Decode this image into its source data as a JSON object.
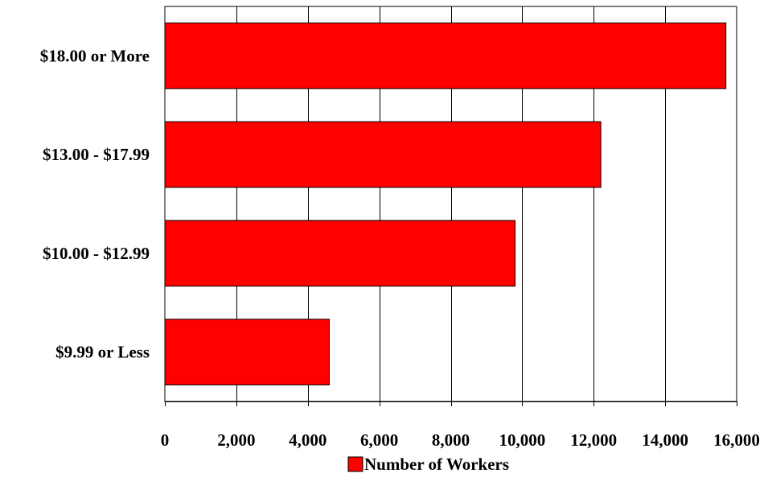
{
  "chart_data": {
    "type": "bar",
    "orientation": "horizontal",
    "title": "",
    "xlabel": "",
    "ylabel": "",
    "categories": [
      "$9.99 or Less",
      "$10.00 - $12.99",
      "$13.00 - $17.99",
      "$18.00 or More"
    ],
    "series": [
      {
        "name": "Number of Workers",
        "values": [
          4600,
          9800,
          12200,
          15700
        ]
      }
    ],
    "xlim": [
      0,
      16000
    ],
    "xticks": [
      0,
      2000,
      4000,
      6000,
      8000,
      10000,
      12000,
      14000,
      16000
    ],
    "xtick_labels": [
      "0",
      "2,000",
      "4,000",
      "6,000",
      "8,000",
      "10,000",
      "12,000",
      "14,000",
      "16,000"
    ],
    "grid": "vertical",
    "legend_position": "bottom",
    "bar_color": "#ff0000"
  }
}
